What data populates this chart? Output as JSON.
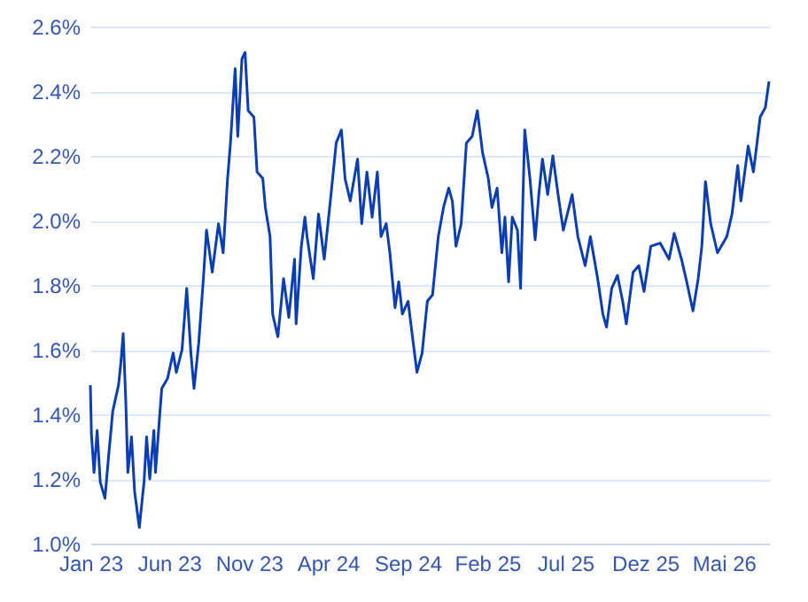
{
  "chart_data": {
    "type": "line",
    "x": [
      "2023-01-01",
      "2023-01-03",
      "2023-01-08",
      "2023-01-14",
      "2023-01-20",
      "2023-01-29",
      "2023-02-05",
      "2023-02-13",
      "2023-02-24",
      "2023-02-28",
      "2023-03-05",
      "2023-03-10",
      "2023-03-14",
      "2023-03-21",
      "2023-03-27",
      "2023-04-05",
      "2023-04-14",
      "2023-04-19",
      "2023-04-25",
      "2023-05-03",
      "2023-05-06",
      "2023-05-18",
      "2023-05-29",
      "2023-06-09",
      "2023-06-15",
      "2023-06-26",
      "2023-07-05",
      "2023-07-13",
      "2023-07-19",
      "2023-07-28",
      "2023-08-06",
      "2023-08-12",
      "2023-08-23",
      "2023-09-04",
      "2023-09-13",
      "2023-09-21",
      "2023-09-27",
      "2023-10-06",
      "2023-10-11",
      "2023-10-19",
      "2023-10-25",
      "2023-10-31",
      "2023-11-11",
      "2023-11-17",
      "2023-11-28",
      "2023-12-03",
      "2023-12-12",
      "2023-12-17",
      "2023-12-27",
      "2024-01-07",
      "2024-01-17",
      "2024-01-28",
      "2024-01-31",
      "2024-02-10",
      "2024-02-17",
      "2024-02-21",
      "2024-03-04",
      "2024-03-14",
      "2024-03-25",
      "2024-04-07",
      "2024-04-17",
      "2024-04-27",
      "2024-05-04",
      "2024-05-14",
      "2024-05-28",
      "2024-06-05",
      "2024-06-15",
      "2024-06-25",
      "2024-07-05",
      "2024-07-12",
      "2024-07-22",
      "2024-07-29",
      "2024-08-08",
      "2024-08-15",
      "2024-08-22",
      "2024-09-02",
      "2024-09-12",
      "2024-09-19",
      "2024-09-29",
      "2024-10-09",
      "2024-10-19",
      "2024-10-30",
      "2024-11-09",
      "2024-11-19",
      "2024-11-26",
      "2024-12-03",
      "2024-12-13",
      "2024-12-23",
      "2025-01-03",
      "2025-01-13",
      "2025-01-23",
      "2025-02-03",
      "2025-02-10",
      "2025-02-20",
      "2025-03-01",
      "2025-03-07",
      "2025-03-14",
      "2025-03-21",
      "2025-03-31",
      "2025-04-06",
      "2025-04-14",
      "2025-04-24",
      "2025-05-04",
      "2025-05-11",
      "2025-05-18",
      "2025-05-28",
      "2025-06-07",
      "2025-06-17",
      "2025-06-27",
      "2025-07-14",
      "2025-07-25",
      "2025-08-08",
      "2025-08-18",
      "2025-09-01",
      "2025-09-11",
      "2025-09-18",
      "2025-09-28",
      "2025-10-09",
      "2025-10-19",
      "2025-10-26",
      "2025-11-08",
      "2025-11-19",
      "2025-11-29",
      "2025-12-12",
      "2025-12-30",
      "2026-01-16",
      "2026-01-26",
      "2026-02-09",
      "2026-02-19",
      "2026-03-03",
      "2026-03-13",
      "2026-03-20",
      "2026-03-27",
      "2026-04-06",
      "2026-04-19",
      "2026-05-07",
      "2026-05-17",
      "2026-05-28",
      "2026-06-03",
      "2026-06-17",
      "2026-06-27",
      "2026-07-04",
      "2026-07-10",
      "2026-07-20",
      "2026-07-27"
    ],
    "series": [
      {
        "color": "#0b3db3",
        "values": [
          1.49,
          1.34,
          1.22,
          1.35,
          1.19,
          1.14,
          1.27,
          1.41,
          1.49,
          1.55,
          1.65,
          1.44,
          1.22,
          1.33,
          1.16,
          1.05,
          1.19,
          1.33,
          1.2,
          1.35,
          1.22,
          1.48,
          1.51,
          1.59,
          1.53,
          1.6,
          1.79,
          1.59,
          1.48,
          1.62,
          1.82,
          1.97,
          1.84,
          1.99,
          1.9,
          2.12,
          2.24,
          2.47,
          2.26,
          2.5,
          2.52,
          2.34,
          2.32,
          2.15,
          2.13,
          2.04,
          1.95,
          1.71,
          1.64,
          1.82,
          1.7,
          1.88,
          1.68,
          1.92,
          2.01,
          1.95,
          1.82,
          2.02,
          1.88,
          2.08,
          2.24,
          2.28,
          2.13,
          2.06,
          2.19,
          1.99,
          2.15,
          2.01,
          2.15,
          1.95,
          1.99,
          1.9,
          1.73,
          1.81,
          1.71,
          1.75,
          1.62,
          1.53,
          1.59,
          1.75,
          1.77,
          1.95,
          2.04,
          2.1,
          2.06,
          1.92,
          1.99,
          2.24,
          2.26,
          2.34,
          2.21,
          2.13,
          2.04,
          2.1,
          1.9,
          2.01,
          1.81,
          2.01,
          1.97,
          1.79,
          2.28,
          2.13,
          1.94,
          2.08,
          2.19,
          2.08,
          2.2,
          2.08,
          1.97,
          2.08,
          1.95,
          1.86,
          1.95,
          1.82,
          1.71,
          1.67,
          1.79,
          1.83,
          1.75,
          1.68,
          1.84,
          1.86,
          1.78,
          1.92,
          1.93,
          1.88,
          1.96,
          1.88,
          1.81,
          1.72,
          1.82,
          1.92,
          2.12,
          1.99,
          1.9,
          1.95,
          2.02,
          2.17,
          2.06,
          2.23,
          2.15,
          2.24,
          2.32,
          2.35,
          2.43
        ]
      }
    ],
    "xlim": [
      "2023-01-01",
      "2026-07-27"
    ],
    "xticks": [
      {
        "value": "2023-01-01",
        "label": "Jan 23"
      },
      {
        "value": "2023-06-01",
        "label": "Jun 23"
      },
      {
        "value": "2023-11-01",
        "label": "Nov 23"
      },
      {
        "value": "2024-04-01",
        "label": "Apr 24"
      },
      {
        "value": "2024-09-01",
        "label": "Sep 24"
      },
      {
        "value": "2025-02-01",
        "label": "Feb 25"
      },
      {
        "value": "2025-07-01",
        "label": "Jul 25"
      },
      {
        "value": "2025-12-01",
        "label": "Dez 25"
      },
      {
        "value": "2026-05-01",
        "label": "Mai 26"
      }
    ],
    "ylim": [
      1.0,
      2.6
    ],
    "yticks": [
      {
        "value": 1.0,
        "label": "1.0%"
      },
      {
        "value": 1.2,
        "label": "1.2%"
      },
      {
        "value": 1.4,
        "label": "1.4%"
      },
      {
        "value": 1.6,
        "label": "1.6%"
      },
      {
        "value": 1.8,
        "label": "1.8%"
      },
      {
        "value": 2.0,
        "label": "2.0%"
      },
      {
        "value": 2.2,
        "label": "2.2%"
      },
      {
        "value": 2.4,
        "label": "2.4%"
      },
      {
        "value": 2.6,
        "label": "2.6%"
      }
    ],
    "grid": "y"
  }
}
